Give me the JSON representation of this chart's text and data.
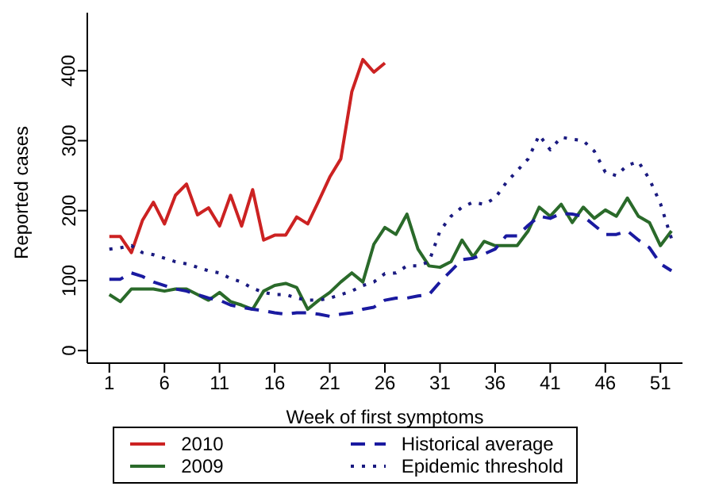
{
  "chart_data": {
    "type": "line",
    "xlabel": "Week of first symptoms",
    "ylabel": "Reported cases",
    "x": [
      1,
      2,
      3,
      4,
      5,
      6,
      7,
      8,
      9,
      10,
      11,
      12,
      13,
      14,
      15,
      16,
      17,
      18,
      19,
      20,
      21,
      22,
      23,
      24,
      25,
      26,
      27,
      28,
      29,
      30,
      31,
      32,
      33,
      34,
      35,
      36,
      37,
      38,
      39,
      40,
      41,
      42,
      43,
      44,
      45,
      46,
      47,
      48,
      49,
      50,
      51,
      52
    ],
    "xlim": [
      -1,
      53
    ],
    "xticks": [
      1,
      6,
      11,
      16,
      21,
      26,
      31,
      36,
      41,
      46,
      51
    ],
    "ylim": [
      -18,
      483
    ],
    "yticks": [
      0,
      100,
      200,
      300,
      400
    ],
    "legend": "bottom",
    "marker": "none",
    "series": [
      {
        "name": "2010",
        "color": "#cc2222",
        "line_style": "solid",
        "values": [
          163,
          163,
          140,
          186,
          212,
          181,
          222,
          238,
          194,
          204,
          178,
          222,
          178,
          230,
          158,
          165,
          165,
          191,
          181,
          214,
          248,
          274,
          370,
          416,
          398,
          411,
          null,
          null,
          null,
          null,
          null,
          null,
          null,
          null,
          null,
          null,
          null,
          null,
          null,
          null,
          null,
          null,
          null,
          null,
          null,
          null,
          null,
          null,
          null,
          null,
          null,
          null
        ]
      },
      {
        "name": "2009",
        "color": "#2a6a2a",
        "line_style": "solid",
        "values": [
          80,
          70,
          88,
          88,
          88,
          85,
          88,
          88,
          80,
          72,
          83,
          70,
          65,
          59,
          85,
          93,
          96,
          90,
          59,
          72,
          83,
          98,
          111,
          98,
          152,
          176,
          166,
          195,
          145,
          121,
          119,
          127,
          158,
          134,
          156,
          150,
          150,
          150,
          171,
          205,
          192,
          209,
          183,
          205,
          189,
          201,
          192,
          218,
          192,
          183,
          150,
          171
        ]
      },
      {
        "name": "Historical average",
        "color": "#1a1aa0",
        "line_style": "dashed",
        "values": [
          102,
          102,
          111,
          106,
          98,
          93,
          88,
          85,
          80,
          75,
          72,
          65,
          62,
          59,
          57,
          54,
          52,
          54,
          54,
          52,
          49,
          52,
          54,
          59,
          62,
          72,
          75,
          75,
          78,
          80,
          98,
          114,
          130,
          132,
          138,
          145,
          164,
          164,
          179,
          192,
          189,
          196,
          195,
          192,
          179,
          166,
          166,
          171,
          158,
          147,
          124,
          114
        ]
      },
      {
        "name": "Epidemic threshold",
        "color": "#1a1a80",
        "line_style": "dotted",
        "values": [
          145,
          147,
          150,
          140,
          137,
          132,
          127,
          124,
          119,
          114,
          111,
          103,
          98,
          89,
          83,
          80,
          80,
          75,
          72,
          72,
          75,
          80,
          85,
          93,
          98,
          110,
          111,
          121,
          121,
          127,
          171,
          192,
          205,
          212,
          209,
          218,
          240,
          257,
          274,
          308,
          287,
          305,
          302,
          300,
          285,
          255,
          250,
          265,
          270,
          245,
          210,
          160
        ]
      }
    ]
  }
}
